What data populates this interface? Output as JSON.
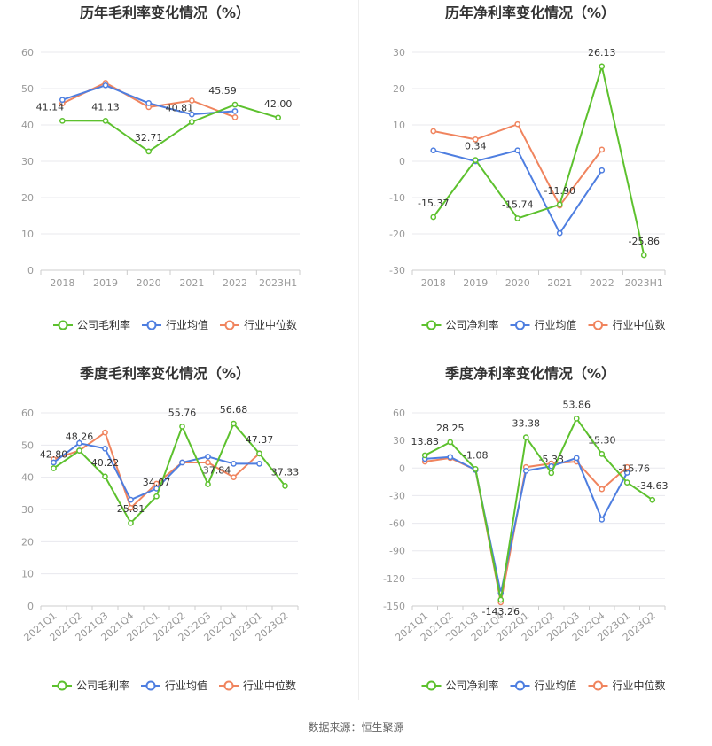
{
  "colors": {
    "company": "#5dc12e",
    "avg": "#4e7ee0",
    "median": "#f0845e",
    "grid": "#e8e8ee",
    "axis": "#cccccc"
  },
  "legend": {
    "avg": "行业均值",
    "median": "行业中位数"
  },
  "source": "数据来源：恒生聚源",
  "chart_data": [
    {
      "type": "line",
      "title": "历年毛利率变化情况（%）",
      "categories": [
        "2018",
        "2019",
        "2020",
        "2021",
        "2022",
        "2023H1"
      ],
      "ylim": [
        0,
        60
      ],
      "yticks": [
        0,
        10,
        20,
        30,
        40,
        50,
        60
      ],
      "series": [
        {
          "key": "company",
          "name": "公司毛利率",
          "values": [
            41.14,
            41.13,
            32.71,
            40.81,
            45.59,
            42.0
          ],
          "labels": [
            "41.14",
            "41.13",
            "32.71",
            "40.81",
            "45.59",
            "42.00"
          ]
        },
        {
          "key": "avg",
          "name": "行业均值",
          "values": [
            46.9,
            50.9,
            46.0,
            42.9,
            43.8,
            null
          ]
        },
        {
          "key": "median",
          "name": "行业中位数",
          "values": [
            45.9,
            51.6,
            44.9,
            46.7,
            42.1,
            null
          ]
        }
      ]
    },
    {
      "type": "line",
      "title": "历年净利率变化情况（%）",
      "categories": [
        "2018",
        "2019",
        "2020",
        "2021",
        "2022",
        "2023H1"
      ],
      "ylim": [
        -30,
        30
      ],
      "yticks": [
        -30,
        -20,
        -10,
        0,
        10,
        20,
        30
      ],
      "series": [
        {
          "key": "company",
          "name": "公司净利率",
          "values": [
            -15.37,
            0.34,
            -15.74,
            -11.9,
            26.13,
            -25.86
          ],
          "labels": [
            "-15.37",
            "0.34",
            "-15.74",
            "-11.90",
            "26.13",
            "-25.86"
          ]
        },
        {
          "key": "avg",
          "name": "行业均值",
          "values": [
            3.0,
            0.0,
            3.0,
            -19.8,
            -2.5,
            null
          ]
        },
        {
          "key": "median",
          "name": "行业中位数",
          "values": [
            8.3,
            6.0,
            10.2,
            -12.2,
            3.2,
            null
          ]
        }
      ]
    },
    {
      "type": "line",
      "title": "季度毛利率变化情况（%）",
      "categories": [
        "2021Q1",
        "2021Q2",
        "2021Q3",
        "2021Q4",
        "2022Q1",
        "2022Q2",
        "2022Q3",
        "2022Q4",
        "2023Q1",
        "2023Q2"
      ],
      "ylim": [
        0,
        60
      ],
      "yticks": [
        0,
        10,
        20,
        30,
        40,
        50,
        60
      ],
      "series": [
        {
          "key": "company",
          "name": "公司毛利率",
          "values": [
            42.8,
            48.26,
            40.22,
            25.81,
            34.07,
            55.76,
            37.84,
            56.68,
            47.37,
            37.33
          ],
          "labels": [
            "42.80",
            "48.26",
            "40.22",
            "25.81",
            "34.07",
            "55.76",
            "37.84",
            "56.68",
            "47.37",
            "37.33"
          ]
        },
        {
          "key": "avg",
          "name": "行业均值",
          "values": [
            44.6,
            50.6,
            48.9,
            33.0,
            36.5,
            44.6,
            46.4,
            44.2,
            44.2,
            null
          ]
        },
        {
          "key": "median",
          "name": "行业中位数",
          "values": [
            45.6,
            48.3,
            53.9,
            30.5,
            38.0,
            44.6,
            44.6,
            40.0,
            47.4,
            null
          ]
        }
      ]
    },
    {
      "type": "line",
      "title": "季度净利率变化情况（%）",
      "categories": [
        "2021Q1",
        "2021Q2",
        "2021Q3",
        "2021Q4",
        "2022Q1",
        "2022Q2",
        "2022Q3",
        "2022Q4",
        "2023Q1",
        "2023Q2"
      ],
      "ylim": [
        -150,
        60
      ],
      "yticks": [
        -150,
        -120,
        -90,
        -60,
        -30,
        0,
        30,
        60
      ],
      "series": [
        {
          "key": "company",
          "name": "公司净利率",
          "values": [
            13.83,
            28.25,
            -1.08,
            -143.26,
            33.38,
            -5.33,
            53.86,
            15.3,
            -15.76,
            -34.63
          ],
          "labels": [
            "13.83",
            "28.25",
            "-1.08",
            "-143.26",
            "33.38",
            "-5.33",
            "53.86",
            "15.30",
            "-15.76",
            "-34.63"
          ]
        },
        {
          "key": "avg",
          "name": "行业均值",
          "values": [
            10.0,
            12.0,
            -2.0,
            -136.0,
            -3.0,
            2.0,
            11.0,
            -56.0,
            -5.0,
            null
          ]
        },
        {
          "key": "median",
          "name": "行业中位数",
          "values": [
            7.0,
            11.0,
            -2.0,
            -146.0,
            1.0,
            5.0,
            7.0,
            -23.0,
            1.0,
            null
          ]
        }
      ]
    }
  ]
}
